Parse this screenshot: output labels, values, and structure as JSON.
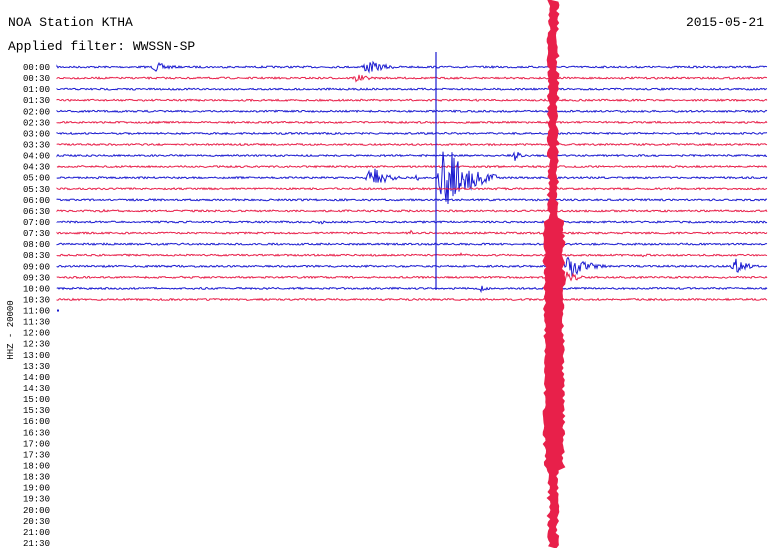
{
  "header": {
    "title": "NOA Station KTHA",
    "date": "2015-05-21",
    "filter": "Applied filter: WWSSN-SP"
  },
  "side_label": "HHZ - 20000",
  "rows": [
    "00:00",
    "00:30",
    "01:00",
    "01:30",
    "02:00",
    "02:30",
    "03:00",
    "03:30",
    "04:00",
    "04:30",
    "05:00",
    "05:30",
    "06:00",
    "06:30",
    "07:00",
    "07:30",
    "08:00",
    "08:30",
    "09:00",
    "09:30",
    "10:00",
    "10:30",
    "11:00",
    "11:30",
    "12:00",
    "12:30",
    "13:00",
    "13:30",
    "14:00",
    "14:30",
    "15:00",
    "15:30",
    "16:00",
    "16:30",
    "17:00",
    "17:30",
    "18:00",
    "18:30",
    "19:00",
    "19:30",
    "20:00",
    "20:30",
    "21:00",
    "21:30"
  ]
}
